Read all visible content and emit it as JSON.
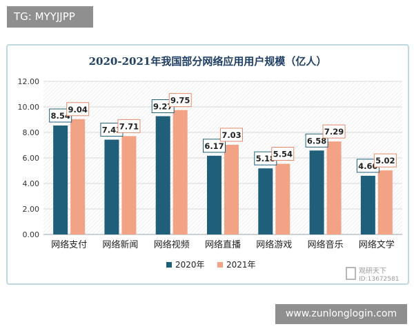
{
  "overlay": {
    "top_badge": "TG: MYYJJPP",
    "bottom_badge": "www.zunlonglogin.com",
    "source_mark": "观研天下",
    "source_id": "ID:13672581"
  },
  "chart_data": {
    "type": "bar",
    "title": "2020-2021年我国部分网络应用用户规模（亿人）",
    "categories": [
      "网络支付",
      "网络新闻",
      "网络视频",
      "网络直播",
      "网络游戏",
      "网络音乐",
      "网络文学"
    ],
    "series": [
      {
        "name": "2020年",
        "values": [
          8.54,
          7.43,
          9.27,
          6.17,
          5.18,
          6.58,
          4.6
        ],
        "labels": [
          "8.54",
          "7.43",
          "9.27",
          "6.17",
          "5.18",
          "6.58",
          "4.60"
        ],
        "color": "#1f5f7a"
      },
      {
        "name": "2021年",
        "values": [
          9.04,
          7.71,
          9.75,
          7.03,
          5.54,
          7.29,
          5.02
        ],
        "labels": [
          "9.04",
          "7.71",
          "9.75",
          "7.03",
          "5.54",
          "7.29",
          "5.02"
        ],
        "color": "#f2a385"
      }
    ],
    "ylim": [
      0,
      12
    ],
    "yticks": [
      "0.00",
      "2.00",
      "4.00",
      "6.00",
      "8.00",
      "10.00",
      "12.00"
    ],
    "ytick_values": [
      0,
      2,
      4,
      6,
      8,
      10,
      12
    ],
    "grid": true,
    "legend_position": "bottom-center",
    "background": "hatched"
  }
}
